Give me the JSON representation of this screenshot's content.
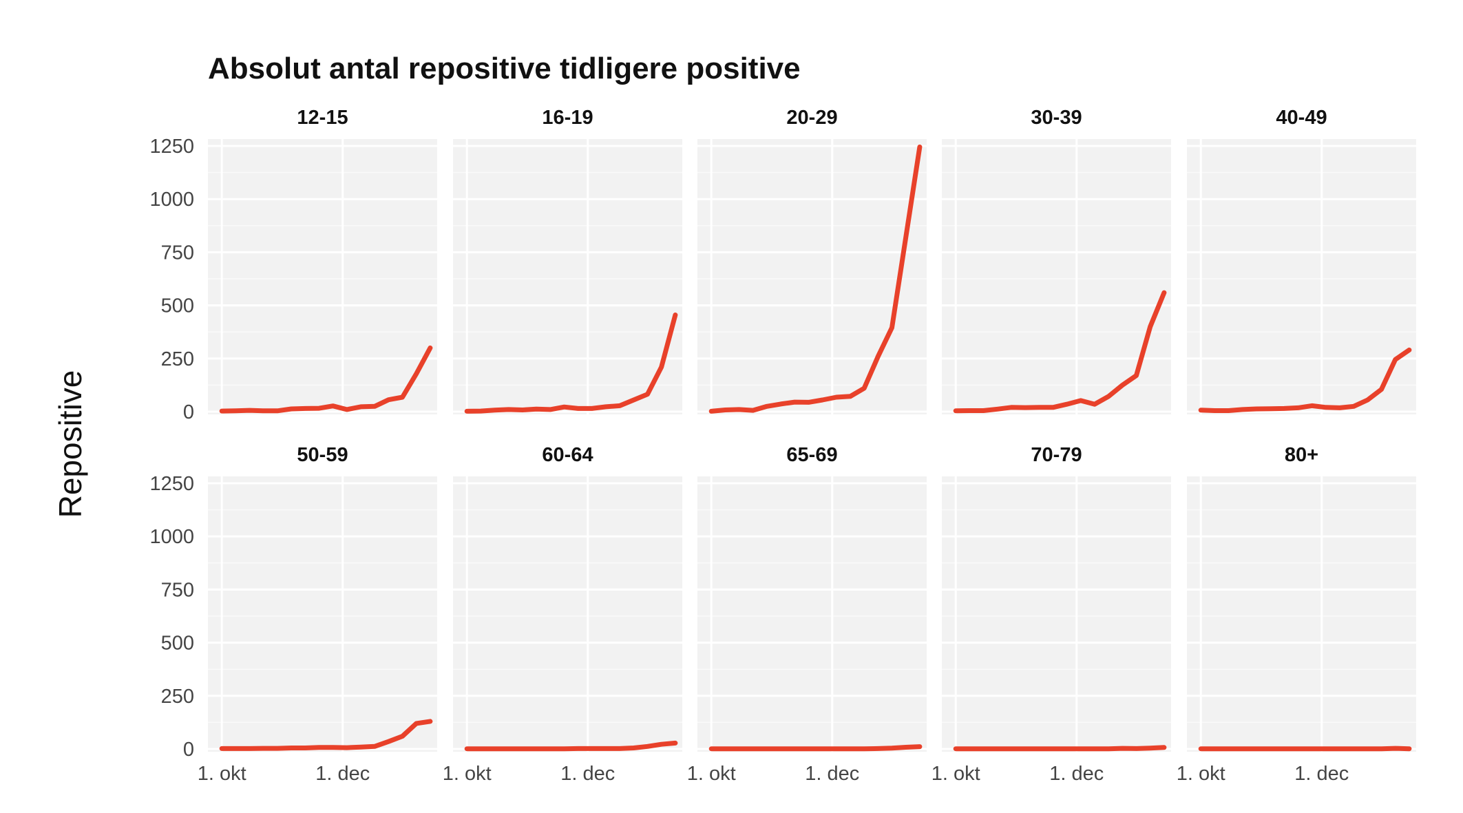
{
  "chart_data": {
    "type": "line",
    "title": "Absolut antal repositive tidligere positive",
    "ylabel": "Repositive",
    "xlabel": "",
    "ylim": [
      0,
      1250
    ],
    "yticks": [
      0,
      250,
      500,
      750,
      1000,
      1250
    ],
    "x_tick_labels": [
      "1. okt",
      "1. dec"
    ],
    "x_tick_weeks": [
      0,
      8.7
    ],
    "x_range_weeks": [
      -1,
      15.5
    ],
    "x_unit": "weekly observations starting late September",
    "line_color": "#e8412a",
    "panel_background": "#f2f2f2",
    "grid": true,
    "panels": [
      {
        "name": "12-15",
        "values": [
          3,
          4,
          6,
          4,
          4,
          13,
          15,
          16,
          27,
          10,
          23,
          25,
          56,
          68,
          178,
          300
        ]
      },
      {
        "name": "16-19",
        "values": [
          2,
          3,
          7,
          10,
          8,
          12,
          10,
          22,
          15,
          15,
          23,
          28,
          55,
          82,
          210,
          455
        ]
      },
      {
        "name": "20-29",
        "values": [
          2,
          8,
          10,
          6,
          25,
          36,
          45,
          44,
          55,
          68,
          72,
          110,
          260,
          395,
          820,
          1245
        ]
      },
      {
        "name": "30-39",
        "values": [
          4,
          5,
          5,
          12,
          20,
          19,
          20,
          20,
          35,
          52,
          35,
          72,
          125,
          170,
          400,
          560
        ]
      },
      {
        "name": "40-49",
        "values": [
          7,
          5,
          5,
          10,
          13,
          14,
          15,
          18,
          28,
          20,
          18,
          25,
          55,
          105,
          245,
          290
        ]
      },
      {
        "name": "50-59",
        "values": [
          2,
          2,
          2,
          3,
          3,
          5,
          5,
          7,
          7,
          6,
          9,
          12,
          35,
          60,
          120,
          130
        ]
      },
      {
        "name": "60-64",
        "values": [
          1,
          1,
          1,
          1,
          1,
          1,
          1,
          1,
          2,
          2,
          2,
          2,
          5,
          12,
          22,
          28
        ]
      },
      {
        "name": "65-69",
        "values": [
          1,
          1,
          1,
          1,
          1,
          1,
          1,
          1,
          1,
          1,
          1,
          1,
          2,
          4,
          8,
          11
        ]
      },
      {
        "name": "70-79",
        "values": [
          1,
          1,
          1,
          1,
          1,
          1,
          1,
          1,
          1,
          1,
          1,
          1,
          3,
          2,
          4,
          7
        ]
      },
      {
        "name": "80+",
        "values": [
          1,
          1,
          1,
          1,
          1,
          1,
          1,
          1,
          1,
          1,
          1,
          1,
          1,
          1,
          3,
          1
        ]
      }
    ]
  }
}
